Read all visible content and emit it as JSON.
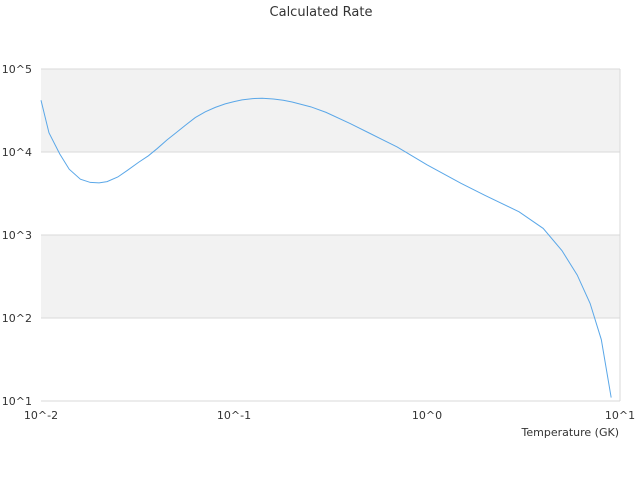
{
  "chart_data": {
    "type": "line",
    "title": "Calculated Rate",
    "xlabel": "Temperature (GK)",
    "ylabel": "",
    "x_scale": "log",
    "y_scale": "log",
    "xlim": [
      0.01,
      10
    ],
    "ylim": [
      10,
      100000
    ],
    "x_ticks": [
      "10^-2",
      "10^-1",
      "10^0",
      "10^1"
    ],
    "y_ticks": [
      "10^1",
      "10^2",
      "10^3",
      "10^4",
      "10^5"
    ],
    "grid": true,
    "alternating_bands": true,
    "band_color": "#f2f2f2",
    "line_color": "#5aa7e8",
    "series": [
      {
        "x": [
          0.01,
          0.011,
          0.0125,
          0.014,
          0.016,
          0.018,
          0.02,
          0.022,
          0.025,
          0.028,
          0.032,
          0.036,
          0.04,
          0.045,
          0.05,
          0.056,
          0.063,
          0.071,
          0.08,
          0.09,
          0.1,
          0.11,
          0.125,
          0.14,
          0.16,
          0.18,
          0.2,
          0.25,
          0.3,
          0.4,
          0.5,
          0.7,
          1.0,
          1.5,
          2.0,
          3.0,
          4.0,
          5.0,
          6.0,
          7.0,
          8.0,
          9.0
        ],
        "y": [
          42000,
          17000,
          9500,
          6200,
          4700,
          4300,
          4250,
          4400,
          5000,
          6000,
          7500,
          9000,
          11000,
          14000,
          17000,
          21000,
          26000,
          30500,
          34500,
          38000,
          40500,
          42500,
          44000,
          44500,
          43500,
          42000,
          40000,
          35000,
          30000,
          22000,
          17000,
          11500,
          7000,
          4200,
          3000,
          1900,
          1200,
          650,
          330,
          150,
          55,
          11
        ]
      }
    ]
  }
}
